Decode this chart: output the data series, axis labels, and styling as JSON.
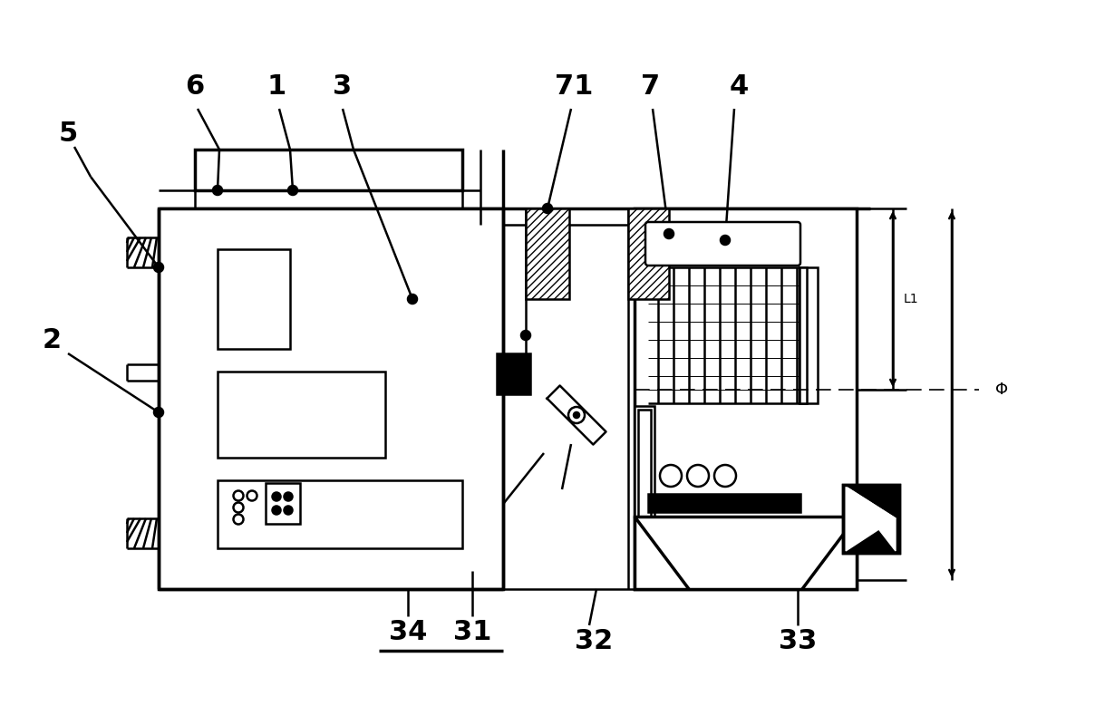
{
  "bg": "#ffffff",
  "lc": "#000000",
  "lw": 1.8,
  "tlw": 2.5,
  "fs_label": 22,
  "fs_dim": 11
}
